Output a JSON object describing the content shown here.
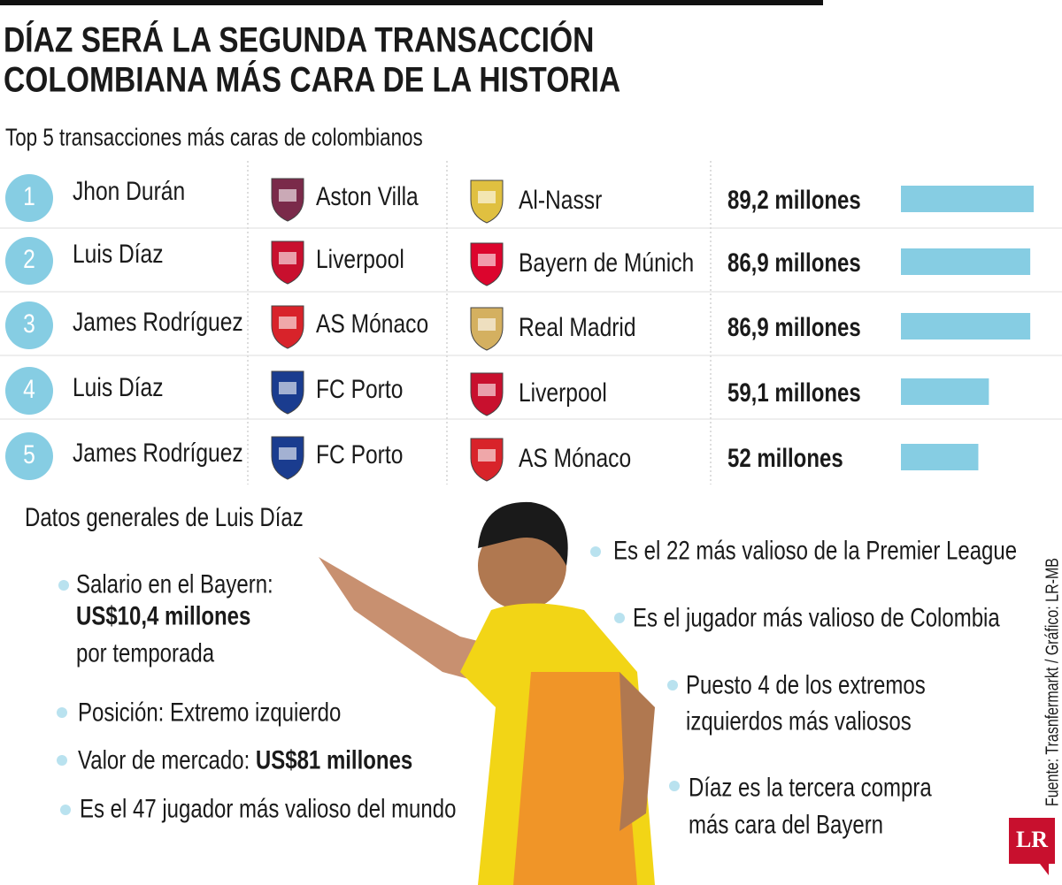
{
  "header": {
    "title_lines": [
      "DÍAZ SERÁ LA SEGUNDA TRANSACCIÓN",
      "COLOMBIANA MÁS CARA DE LA HISTORIA"
    ],
    "subtitle": "Top 5 transacciones más caras de colombianos"
  },
  "table": {
    "bar_color": "#86cde3",
    "rows": [
      {
        "rank": 1,
        "player": "Jhon Durán",
        "from": "Aston Villa",
        "to": "Al-Nassr",
        "fee": 89.2,
        "fee_label": "89,2 millones"
      },
      {
        "rank": 2,
        "player": "Luis Díaz",
        "from": "Liverpool",
        "to": "Bayern de Múnich",
        "fee": 86.9,
        "fee_label": "86,9 millones"
      },
      {
        "rank": 3,
        "player": "James Rodríguez",
        "from": "AS Mónaco",
        "to": "Real Madrid",
        "fee": 86.9,
        "fee_label": "86,9 millones"
      },
      {
        "rank": 4,
        "player": "Luis Díaz",
        "from": "FC Porto",
        "to": "Liverpool",
        "fee": 59.1,
        "fee_label": "59,1 millones"
      },
      {
        "rank": 5,
        "player": "James Rodríguez",
        "from": "FC Porto",
        "to": "AS Mónaco",
        "fee": 52,
        "fee_label": "52 millones"
      }
    ]
  },
  "facts": {
    "title": "Datos generales de Luis Díaz",
    "left": [
      {
        "lines": [
          [
            {
              "text": "Salario en el Bayern:"
            }
          ],
          [
            {
              "text": "US$10,4 millones",
              "bold": true
            }
          ],
          [
            {
              "text": "por temporada"
            }
          ]
        ]
      },
      {
        "lines": [
          [
            {
              "text": "Posición: Extremo izquierdo"
            }
          ]
        ]
      },
      {
        "lines": [
          [
            {
              "text": "Valor de mercado: "
            },
            {
              "text": "US$81 millones",
              "bold": true
            }
          ]
        ]
      },
      {
        "lines": [
          [
            {
              "text": "Es el 47 jugador más valioso del mundo"
            }
          ]
        ]
      }
    ],
    "right": [
      {
        "lines": [
          [
            {
              "text": "Es el 22 más valioso de la Premier League"
            }
          ]
        ]
      },
      {
        "lines": [
          [
            {
              "text": "Es el jugador más valioso de Colombia"
            }
          ]
        ]
      },
      {
        "lines": [
          [
            {
              "text": "Puesto 4 de los extremos"
            }
          ],
          [
            {
              "text": "izquierdos más valiosos"
            }
          ]
        ]
      },
      {
        "lines": [
          [
            {
              "text": "Díaz es la tercera compra"
            }
          ],
          [
            {
              "text": "más cara del Bayern"
            }
          ]
        ]
      }
    ]
  },
  "source": "Fuente: Trasnfermarkt / Gráfico: LR-MB",
  "logo": "LR"
}
